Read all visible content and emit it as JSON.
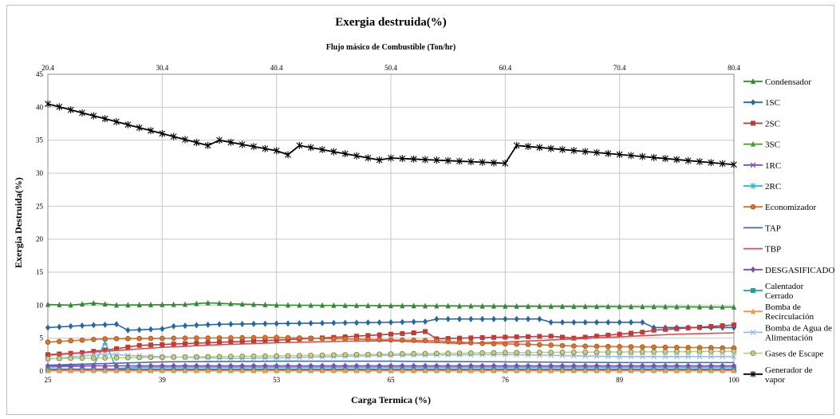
{
  "chart_data": {
    "type": "line",
    "title": "Exergia destruida(%)",
    "top_axis_label": "Flujo másico de Combustible   (Ton/hr)",
    "top_ticks": [
      "20.4",
      "30.4",
      "40.4",
      "50.4",
      "60.4",
      "70.4",
      "80.4"
    ],
    "xlabel": "Carga Termica (%)",
    "x_ticks": [
      "25",
      "39",
      "53",
      "65",
      "76",
      "89",
      "100"
    ],
    "ylabel": "Exergia Destruida(%)",
    "ylim": [
      0,
      45
    ],
    "y_ticks": [
      "0",
      "5",
      "10",
      "15",
      "20",
      "25",
      "30",
      "35",
      "40",
      "45"
    ],
    "grid": true,
    "legend_position": "right",
    "n_points": 61,
    "series": [
      {
        "name": "Condensador",
        "color": "#2e8b2e",
        "marker": "triangle",
        "values": [
          [
            0,
            10.1
          ],
          [
            2,
            10.0
          ],
          [
            4,
            10.3
          ],
          [
            6,
            10.0
          ],
          [
            12,
            10.1
          ],
          [
            14,
            10.35
          ],
          [
            16,
            10.2
          ],
          [
            20,
            10.0
          ],
          [
            30,
            9.9
          ],
          [
            60,
            9.7
          ]
        ]
      },
      {
        "name": "1SC",
        "color": "#2467a6",
        "marker": "diamond",
        "values": [
          [
            0,
            6.6
          ],
          [
            3,
            6.9
          ],
          [
            6,
            7.1
          ],
          [
            7,
            6.2
          ],
          [
            10,
            6.4
          ],
          [
            11,
            6.8
          ],
          [
            15,
            7.1
          ],
          [
            30,
            7.4
          ],
          [
            33,
            7.5
          ],
          [
            34,
            7.9
          ],
          [
            43,
            7.9
          ],
          [
            44,
            7.4
          ],
          [
            52,
            7.4
          ],
          [
            53,
            6.6
          ],
          [
            60,
            6.6
          ]
        ]
      },
      {
        "name": "2SC",
        "color": "#c0393b",
        "marker": "square",
        "values": [
          [
            0,
            2.5
          ],
          [
            3,
            2.8
          ],
          [
            4,
            3.0
          ],
          [
            6,
            3.4
          ],
          [
            8,
            3.9
          ],
          [
            14,
            4.3
          ],
          [
            20,
            4.7
          ],
          [
            26,
            5.2
          ],
          [
            32,
            5.8
          ],
          [
            33,
            6.0
          ],
          [
            34,
            4.9
          ],
          [
            36,
            5.0
          ],
          [
            44,
            5.3
          ],
          [
            46,
            5.0
          ],
          [
            52,
            5.9
          ],
          [
            53,
            6.2
          ],
          [
            60,
            7.0
          ]
        ]
      },
      {
        "name": "3SC",
        "color": "#4a9a2a",
        "marker": "triangle",
        "values": [
          [
            0,
            0.2
          ],
          [
            60,
            0.2
          ]
        ]
      },
      {
        "name": "1RC",
        "color": "#7d4fa6",
        "marker": "cross",
        "values": [
          [
            0,
            0.3
          ],
          [
            60,
            0.3
          ]
        ]
      },
      {
        "name": "2RC",
        "color": "#2ab7c4",
        "marker": "star",
        "values": [
          [
            0,
            0.6
          ],
          [
            4,
            0.8
          ],
          [
            5,
            4.4
          ],
          [
            6,
            0.4
          ],
          [
            8,
            0.6
          ],
          [
            60,
            0.6
          ]
        ]
      },
      {
        "name": "Economizador",
        "color": "#d9722a",
        "marker": "circle",
        "values": [
          [
            0,
            4.4
          ],
          [
            5,
            4.9
          ],
          [
            20,
            5.1
          ],
          [
            28,
            4.8
          ],
          [
            34,
            4.6
          ],
          [
            38,
            4.2
          ],
          [
            43,
            4.0
          ],
          [
            46,
            3.8
          ],
          [
            55,
            3.6
          ],
          [
            60,
            3.5
          ]
        ]
      },
      {
        "name": "TAP",
        "color": "#3a6fb8",
        "marker": "none",
        "values": [
          [
            0,
            0.9
          ],
          [
            10,
            1.4
          ],
          [
            20,
            1.5
          ],
          [
            30,
            1.5
          ],
          [
            40,
            1.4
          ],
          [
            50,
            1.3
          ],
          [
            60,
            1.3
          ]
        ]
      },
      {
        "name": "TBP",
        "color": "#e24b4b",
        "marker": "none",
        "values": [
          [
            0,
            2.4
          ],
          [
            5,
            3.0
          ],
          [
            10,
            3.6
          ],
          [
            15,
            4.0
          ],
          [
            20,
            4.3
          ],
          [
            25,
            4.5
          ],
          [
            30,
            4.6
          ],
          [
            36,
            4.2
          ],
          [
            40,
            4.4
          ],
          [
            45,
            4.8
          ],
          [
            50,
            5.2
          ],
          [
            55,
            5.6
          ],
          [
            60,
            5.8
          ]
        ]
      },
      {
        "name": "DESGASIFICADO",
        "color": "#7d4fa6",
        "marker": "diamond",
        "values": [
          [
            0,
            0.8
          ],
          [
            60,
            0.8
          ]
        ]
      },
      {
        "name": "Calentador Cerrado",
        "color": "#1f9eb0",
        "marker": "square",
        "values": [
          [
            0,
            0.1
          ],
          [
            60,
            0.1
          ]
        ]
      },
      {
        "name": "Bomba de Recirculación",
        "color": "#f29a4a",
        "marker": "triangle",
        "values": [
          [
            0,
            0.05
          ],
          [
            60,
            0.05
          ]
        ]
      },
      {
        "name": "Bomba de Agua de Alimentación",
        "color": "#9dbbe0",
        "marker": "cross",
        "values": [
          [
            0,
            1.8
          ],
          [
            5,
            2.6
          ],
          [
            8,
            2.3
          ],
          [
            12,
            2.1
          ],
          [
            16,
            1.9
          ],
          [
            20,
            2.0
          ],
          [
            30,
            2.4
          ],
          [
            40,
            2.5
          ],
          [
            50,
            2.2
          ],
          [
            60,
            2.2
          ]
        ]
      },
      {
        "name": "Gases de Escape",
        "color": "#b4d48a",
        "marker": "circle",
        "values": [
          [
            0,
            1.9
          ],
          [
            10,
            2.1
          ],
          [
            20,
            2.3
          ],
          [
            30,
            2.6
          ],
          [
            40,
            2.8
          ],
          [
            50,
            2.9
          ],
          [
            60,
            3.0
          ]
        ]
      },
      {
        "name": "Generador de vapor",
        "color": "#000000",
        "marker": "star",
        "values": [
          [
            0,
            40.5
          ],
          [
            14,
            34.2
          ],
          [
            15,
            35.0
          ],
          [
            20,
            33.4
          ],
          [
            21,
            32.8
          ],
          [
            22,
            34.2
          ],
          [
            29,
            32.0
          ],
          [
            30,
            32.3
          ],
          [
            40,
            31.5
          ],
          [
            41,
            34.2
          ],
          [
            60,
            31.3
          ]
        ]
      }
    ]
  }
}
